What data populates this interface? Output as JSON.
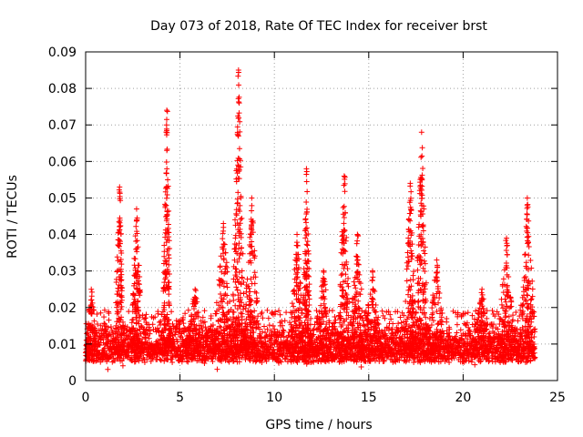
{
  "chart_data": {
    "type": "scatter",
    "title": "Day 073 of 2018, Rate Of TEC Index for receiver brst",
    "xlabel": "GPS time / hours",
    "ylabel": "ROTI / TECUs",
    "xlim": [
      0,
      25
    ],
    "ylim": [
      0,
      0.09
    ],
    "xticks": [
      0,
      5,
      10,
      15,
      20,
      25
    ],
    "xtick_labels": [
      "0",
      "5",
      "10",
      "15",
      "20",
      "25"
    ],
    "yticks": [
      0,
      0.01,
      0.02,
      0.03,
      0.04,
      0.05,
      0.06,
      0.07,
      0.08,
      0.09
    ],
    "ytick_labels": [
      "0",
      "0.01",
      "0.02",
      "0.03",
      "0.04",
      "0.05",
      "0.06",
      "0.07",
      "0.08",
      "0.09"
    ],
    "grid": true,
    "marker": "+",
    "color": "#ff0000",
    "x_span_hours": [
      0,
      23.8
    ],
    "baseline_range": [
      0.005,
      0.016
    ],
    "peaks": [
      {
        "x": 0.3,
        "value": 0.025,
        "width": 0.35
      },
      {
        "x": 1.8,
        "value": 0.053,
        "width": 0.25
      },
      {
        "x": 2.7,
        "value": 0.047,
        "width": 0.3
      },
      {
        "x": 4.3,
        "value": 0.074,
        "width": 0.2
      },
      {
        "x": 5.8,
        "value": 0.025,
        "width": 0.5
      },
      {
        "x": 7.3,
        "value": 0.043,
        "width": 0.5
      },
      {
        "x": 8.1,
        "value": 0.085,
        "width": 0.3
      },
      {
        "x": 8.8,
        "value": 0.05,
        "width": 0.4
      },
      {
        "x": 11.2,
        "value": 0.04,
        "width": 0.4
      },
      {
        "x": 11.7,
        "value": 0.058,
        "width": 0.2
      },
      {
        "x": 12.6,
        "value": 0.03,
        "width": 0.5
      },
      {
        "x": 13.7,
        "value": 0.056,
        "width": 0.3
      },
      {
        "x": 14.4,
        "value": 0.04,
        "width": 0.4
      },
      {
        "x": 15.2,
        "value": 0.03,
        "width": 0.5
      },
      {
        "x": 17.2,
        "value": 0.054,
        "width": 0.3
      },
      {
        "x": 17.8,
        "value": 0.068,
        "width": 0.3
      },
      {
        "x": 18.6,
        "value": 0.033,
        "width": 0.5
      },
      {
        "x": 21.0,
        "value": 0.025,
        "width": 0.5
      },
      {
        "x": 22.3,
        "value": 0.039,
        "width": 0.5
      },
      {
        "x": 23.4,
        "value": 0.05,
        "width": 0.4
      }
    ]
  }
}
